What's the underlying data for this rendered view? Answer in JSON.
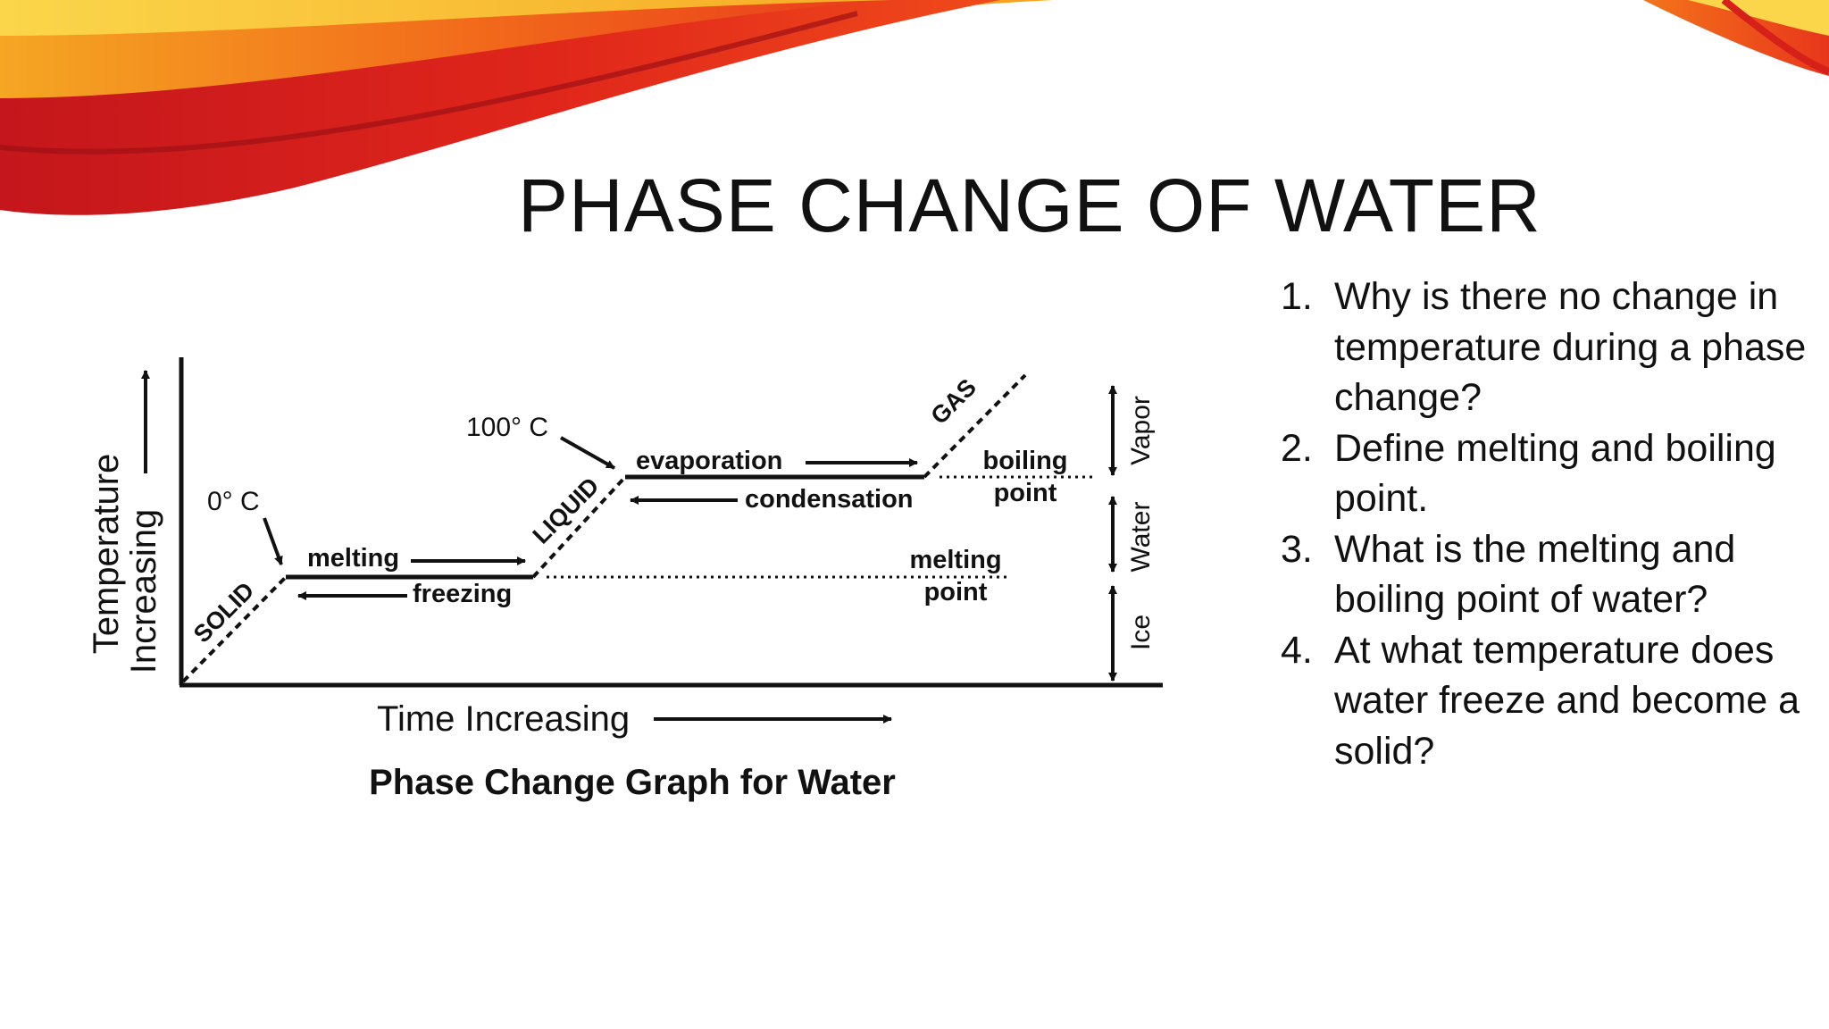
{
  "slide": {
    "title": "PHASE CHANGE OF WATER"
  },
  "diagram": {
    "caption": "Phase Change Graph for Water",
    "x_axis_label": "Time Increasing",
    "y_axis_label_line1": "Temperature",
    "y_axis_label_line2": "Increasing",
    "phase_labels": {
      "solid": "SOLID",
      "liquid": "LIQUID",
      "gas": "GAS"
    },
    "temperature_marks": {
      "freezing": "0° C",
      "boiling": "100° C"
    },
    "process_labels": {
      "melting": "melting",
      "freezing": "freezing",
      "evaporation": "evaporation",
      "condensation": "condensation"
    },
    "point_labels": {
      "boiling_line1": "boiling",
      "boiling_line2": "point",
      "melting_line1": "melting",
      "melting_line2": "point"
    },
    "state_scale": {
      "vapor": "Vapor",
      "water": "Water",
      "ice": "Ice"
    }
  },
  "questions": [
    {
      "number": "1.",
      "text": "Why is there no change in temperature during a phase change?"
    },
    {
      "number": "2.",
      "text": "Define melting and boiling point."
    },
    {
      "number": "3.",
      "text": "What is the melting and boiling point of water?"
    },
    {
      "number": "4.",
      "text": "At what temperature does water freeze and become a solid?"
    }
  ],
  "colors": {
    "text": "#111111",
    "swoosh_red": "#d6201a",
    "swoosh_orange": "#f26a1b",
    "swoosh_yellow": "#f7c21f"
  }
}
